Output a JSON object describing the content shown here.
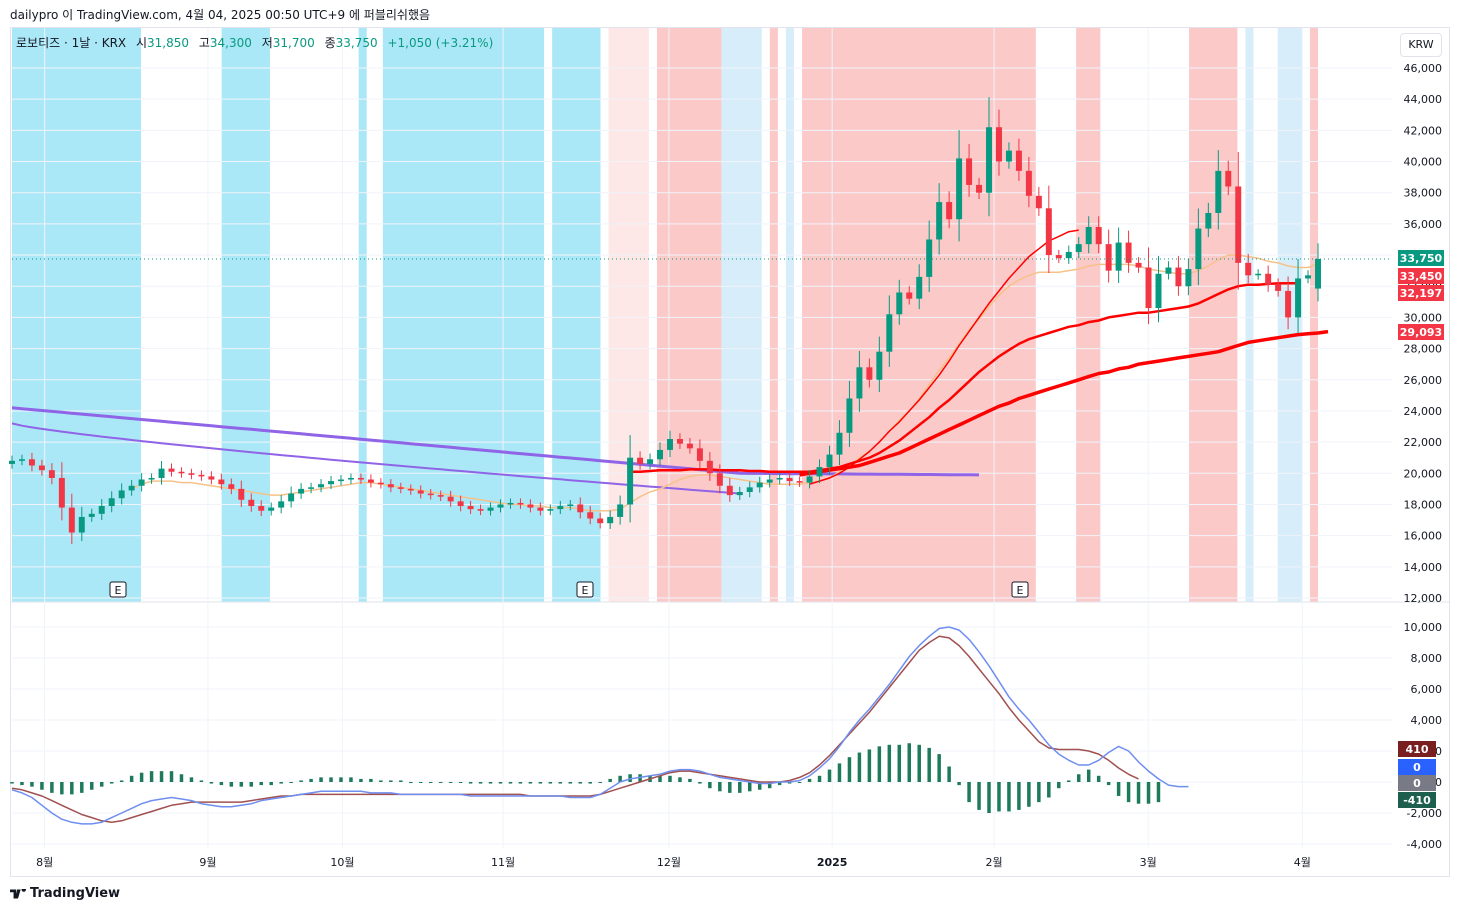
{
  "header": {
    "attribution": "dailypro 이 TradingView.com, 4월 04, 2025 00:50 UTC+9 에 퍼블리쉬했음"
  },
  "legend": {
    "symbol": "로보티즈 · 1날 · KRX",
    "open_label": "시",
    "open": "31,850",
    "high_label": "고",
    "high": "34,300",
    "low_label": "저",
    "low": "31,700",
    "close_label": "종",
    "close": "33,750",
    "change": "+1,050 (+3.21%)"
  },
  "currency_button": "KRW",
  "footer": {
    "brand": "TradingView"
  },
  "colors": {
    "up": "#089981",
    "down": "#f23645",
    "ma_thick": "#ff0000",
    "ma_orange": "#f5c28a",
    "bb_purple": "#8f64e6",
    "macd": "#6f8ef0",
    "signal": "#a0504f",
    "bg_blue": "#abe8f7",
    "bg_lightblue": "#d7edf9",
    "bg_red": "#fcc9c9",
    "bg_lightred": "#fde7e7"
  },
  "chart_data": {
    "type": "candlestick",
    "price_axis_ticks": [
      "46,000",
      "44,000",
      "42,000",
      "40,000",
      "38,000",
      "36,000",
      "34,000",
      "32,000",
      "30,000",
      "28,000",
      "26,000",
      "24,000",
      "22,000",
      "20,000",
      "18,000",
      "16,000",
      "14,000",
      "12,000"
    ],
    "price_labels": [
      {
        "text": "33,750",
        "color": "#089981"
      },
      {
        "text": "33,450",
        "color": "#f23645"
      },
      {
        "text": "32,197",
        "color": "#f23645"
      },
      {
        "text": "29,093",
        "color": "#f23645"
      }
    ],
    "earnings_markers": [
      "E",
      "E",
      "E"
    ],
    "time_axis": [
      "8월",
      "9월",
      "10월",
      "11월",
      "12월",
      "2025",
      "2월",
      "3월",
      "4월"
    ],
    "macd_axis_ticks": [
      "10,000",
      "8,000",
      "6,000",
      "4,000",
      "2,000",
      "0",
      "-2,000",
      "-4,000"
    ],
    "macd_labels": [
      {
        "text": "410",
        "color": "#7a1f1f"
      },
      {
        "text": "0",
        "color": "#2962ff"
      },
      {
        "text": "0",
        "color": "#787b86"
      },
      {
        "text": "-410",
        "color": "#1e5e4e"
      }
    ],
    "close_series": [
      20800,
      20900,
      20500,
      20200,
      19700,
      17800,
      16200,
      17200,
      17400,
      17900,
      18400,
      18900,
      19200,
      19600,
      19700,
      20300,
      20100,
      20000,
      19900,
      19800,
      19600,
      19300,
      19000,
      18300,
      17900,
      17600,
      17800,
      18200,
      18700,
      19000,
      19100,
      19300,
      19500,
      19600,
      19700,
      19600,
      19400,
      19300,
      19100,
      19000,
      18900,
      18700,
      18600,
      18500,
      18200,
      17900,
      17700,
      17600,
      17800,
      18000,
      18100,
      18000,
      17800,
      17600,
      17700,
      17900,
      18000,
      17500,
      17100,
      16800,
      17200,
      18000,
      21000,
      20600,
      20900,
      21500,
      22200,
      21900,
      21600,
      20800,
      20000,
      19200,
      18600,
      18800,
      19100,
      19400,
      19600,
      19700,
      19500,
      19400,
      19800,
      20400,
      21200,
      22600,
      24800,
      26800,
      26000,
      27800,
      30200,
      31600,
      31200,
      32600,
      35000,
      37400,
      36300,
      40200,
      38500,
      38000,
      42200,
      40000,
      40700,
      39400,
      37800,
      37000,
      34000,
      33800,
      34200,
      34700,
      35800,
      34700,
      33000,
      34800,
      33500,
      33200,
      30600,
      32800,
      33200,
      32000,
      33100,
      35700,
      36700,
      39400,
      38400,
      33500,
      32700,
      32800,
      32100,
      31700,
      30000,
      32500,
      32700,
      33750
    ],
    "open_series": [
      20600,
      20800,
      20900,
      20500,
      20200,
      19700,
      17800,
      16200,
      17200,
      17400,
      17900,
      18400,
      18900,
      19200,
      19600,
      19700,
      20300,
      20100,
      20000,
      19900,
      19800,
      19600,
      19300,
      19000,
      18300,
      17900,
      17600,
      17800,
      18200,
      18700,
      19000,
      19100,
      19300,
      19500,
      19600,
      19700,
      19600,
      19400,
      19300,
      19100,
      19000,
      18900,
      18700,
      18600,
      18500,
      18200,
      17900,
      17700,
      17600,
      17800,
      18000,
      18100,
      18000,
      17800,
      17600,
      17700,
      17900,
      18000,
      17500,
      17100,
      16800,
      17200,
      18000,
      21000,
      20600,
      20900,
      21500,
      22200,
      21900,
      21600,
      20800,
      20000,
      19200,
      18600,
      18800,
      19100,
      19400,
      19600,
      19700,
      19500,
      19400,
      19800,
      20400,
      21200,
      22600,
      24800,
      26800,
      26000,
      27800,
      30200,
      31600,
      31200,
      32600,
      35000,
      37400,
      36300,
      40200,
      38500,
      38000,
      42200,
      40000,
      40700,
      39400,
      37800,
      37000,
      34000,
      33800,
      34200,
      34700,
      35800,
      34700,
      33000,
      34800,
      33500,
      33200,
      30600,
      32800,
      33200,
      32000,
      33100,
      35700,
      36700,
      39400,
      38400,
      33500,
      32700,
      32800,
      32100,
      31700,
      30000,
      32500,
      31850
    ],
    "ma_short_orange": [
      null,
      null,
      null,
      null,
      null,
      null,
      null,
      null,
      null,
      null,
      null,
      null,
      19000,
      19300,
      19500,
      19500,
      19500,
      19400,
      19400,
      19300,
      19200,
      19100,
      19000,
      18900,
      18800,
      18700,
      18600,
      18600,
      18700,
      18800,
      18900,
      19000,
      19100,
      19200,
      19300,
      19400,
      19400,
      19300,
      19200,
      19100,
      19000,
      18900,
      18800,
      18700,
      18600,
      18500,
      18400,
      18300,
      18200,
      18100,
      18000,
      18000,
      17900,
      17900,
      17800,
      17800,
      17800,
      17700,
      17600,
      17600,
      17600,
      17700,
      18100,
      18500,
      18800,
      19000,
      19300,
      19600,
      19800,
      19900,
      19900,
      19800,
      19700,
      19600,
      19500,
      19400,
      19300,
      19300,
      19300,
      19300,
      19400,
      19500,
      19700,
      20100,
      20500,
      21000,
      21400,
      22000,
      22700,
      23400,
      24000,
      24800,
      25700,
      26600,
      27400,
      28300,
      29200,
      29900,
      30700,
      31400,
      32000,
      32400,
      32700,
      32900,
      32900,
      32900,
      33000,
      33100,
      33300,
      33400,
      33400,
      33400,
      33400,
      33300,
      33100,
      33000,
      32900,
      32800,
      32800,
      33000,
      33300,
      33700,
      34000,
      34000,
      33900,
      33800,
      33600,
      33500,
      33300,
      33200,
      33200,
      33450
    ],
    "ma_mid_red": [
      null,
      null,
      null,
      null,
      null,
      null,
      null,
      null,
      null,
      null,
      null,
      null,
      null,
      null,
      null,
      null,
      null,
      null,
      null,
      null,
      null,
      null,
      null,
      null,
      null,
      null,
      null,
      null,
      null,
      null,
      null,
      null,
      null,
      null,
      null,
      null,
      null,
      null,
      null,
      null,
      null,
      null,
      null,
      null,
      null,
      null,
      null,
      null,
      null,
      null,
      null,
      null,
      null,
      null,
      null,
      null,
      null,
      null,
      null,
      null,
      null,
      null,
      null,
      null,
      null,
      null,
      null,
      null,
      null,
      null,
      null,
      null,
      null,
      null,
      null,
      null,
      null,
      null,
      null,
      null,
      19300,
      19500,
      19700,
      20000,
      20400,
      20900,
      21400,
      22000,
      22700,
      23300,
      24000,
      24700,
      25500,
      26300,
      27200,
      28200,
      29100,
      30000,
      30900,
      31700,
      32500,
      33200,
      33900,
      34400,
      34900,
      35200,
      35500,
      35600,
      null,
      null,
      null,
      null,
      null,
      null,
      null,
      null,
      null,
      null,
      null,
      null,
      null,
      null,
      null,
      null,
      null,
      null,
      null,
      null,
      null,
      null,
      null,
      null,
      null,
      null
    ],
    "ma_long_red": [
      null,
      null,
      null,
      null,
      null,
      null,
      null,
      null,
      null,
      null,
      null,
      null,
      null,
      null,
      null,
      null,
      null,
      null,
      null,
      null,
      null,
      null,
      null,
      null,
      null,
      null,
      null,
      null,
      null,
      null,
      null,
      null,
      null,
      null,
      null,
      null,
      null,
      null,
      null,
      null,
      null,
      null,
      null,
      null,
      null,
      null,
      null,
      null,
      null,
      null,
      null,
      null,
      null,
      null,
      null,
      null,
      null,
      null,
      null,
      null,
      null,
      null,
      20100,
      20100,
      20150,
      20200,
      20200,
      20200,
      20250,
      20250,
      20250,
      20200,
      20200,
      20200,
      20150,
      20150,
      20100,
      20100,
      20100,
      20100,
      20100,
      20200,
      20300,
      20400,
      20600,
      20800,
      21000,
      21300,
      21700,
      22100,
      22600,
      23100,
      23600,
      24200,
      24700,
      25300,
      25900,
      26500,
      27000,
      27500,
      27900,
      28300,
      28600,
      28800,
      29000,
      29200,
      29400,
      29500,
      29700,
      29800,
      30000,
      30100,
      30200,
      30300,
      30300,
      30400,
      30500,
      30600,
      30700,
      30900,
      31200,
      31500,
      31800,
      32000,
      32100,
      32100,
      32150,
      32180,
      32190,
      32197
    ],
    "ma_longest_red": [
      null,
      null,
      null,
      null,
      null,
      null,
      null,
      null,
      null,
      null,
      null,
      null,
      null,
      null,
      null,
      null,
      null,
      null,
      null,
      null,
      null,
      null,
      null,
      null,
      null,
      null,
      null,
      null,
      null,
      null,
      null,
      null,
      null,
      null,
      null,
      null,
      null,
      null,
      null,
      null,
      null,
      null,
      null,
      null,
      null,
      null,
      null,
      null,
      null,
      null,
      null,
      null,
      null,
      null,
      null,
      null,
      null,
      null,
      null,
      null,
      null,
      null,
      null,
      null,
      null,
      null,
      null,
      null,
      null,
      null,
      null,
      null,
      null,
      null,
      null,
      null,
      null,
      null,
      null,
      19900,
      20000,
      20100,
      20200,
      20300,
      20400,
      20500,
      20700,
      20900,
      21100,
      21300,
      21600,
      21900,
      22200,
      22500,
      22800,
      23100,
      23400,
      23700,
      24000,
      24300,
      24500,
      24800,
      25000,
      25200,
      25400,
      25600,
      25800,
      26000,
      26200,
      26400,
      26500,
      26700,
      26800,
      27000,
      27100,
      27200,
      27300,
      27400,
      27500,
      27600,
      27700,
      27800,
      28000,
      28200,
      28400,
      28500,
      28600,
      28700,
      28800,
      28900,
      28950,
      29000,
      29093
    ],
    "macd_line": [
      -500,
      -700,
      -1000,
      -1500,
      -2000,
      -2400,
      -2600,
      -2700,
      -2700,
      -2600,
      -2300,
      -2000,
      -1700,
      -1400,
      -1200,
      -1100,
      -1000,
      -1100,
      -1200,
      -1400,
      -1500,
      -1600,
      -1600,
      -1500,
      -1400,
      -1200,
      -1100,
      -1000,
      -900,
      -800,
      -700,
      -600,
      -600,
      -600,
      -600,
      -600,
      -700,
      -700,
      -700,
      -800,
      -800,
      -800,
      -800,
      -800,
      -800,
      -800,
      -900,
      -900,
      -900,
      -900,
      -900,
      -900,
      -900,
      -900,
      -900,
      -900,
      -1000,
      -1000,
      -1000,
      -800,
      -400,
      0,
      200,
      300,
      400,
      500,
      700,
      800,
      800,
      700,
      500,
      300,
      200,
      100,
      0,
      -100,
      -100,
      0,
      0,
      100,
      400,
      900,
      1500,
      2300,
      3200,
      4000,
      4700,
      5500,
      6300,
      7200,
      8100,
      8800,
      9400,
      9900,
      10000,
      9800,
      9200,
      8400,
      7500,
      6500,
      5500,
      4700,
      4000,
      3200,
      2400,
      1800,
      1400,
      1100,
      1100,
      1400,
      1900,
      2300,
      2000,
      1300,
      700,
      200,
      -200,
      -300,
      -300
    ],
    "signal_line": [
      -400,
      -500,
      -700,
      -900,
      -1200,
      -1500,
      -1800,
      -2100,
      -2300,
      -2500,
      -2600,
      -2500,
      -2300,
      -2100,
      -1900,
      -1700,
      -1500,
      -1400,
      -1300,
      -1300,
      -1300,
      -1300,
      -1300,
      -1300,
      -1200,
      -1100,
      -1000,
      -900,
      -900,
      -800,
      -800,
      -800,
      -800,
      -800,
      -800,
      -800,
      -800,
      -800,
      -800,
      -800,
      -800,
      -800,
      -800,
      -800,
      -800,
      -800,
      -800,
      -800,
      -800,
      -800,
      -800,
      -800,
      -900,
      -900,
      -900,
      -900,
      -900,
      -900,
      -900,
      -800,
      -600,
      -400,
      -200,
      0,
      200,
      400,
      600,
      700,
      700,
      600,
      500,
      400,
      300,
      200,
      100,
      0,
      0,
      0,
      100,
      300,
      600,
      1100,
      1700,
      2400,
      3100,
      3800,
      4500,
      5300,
      6100,
      6900,
      7700,
      8500,
      9000,
      9400,
      9300,
      8800,
      8100,
      7300,
      6500,
      5700,
      4800,
      4000,
      3300,
      2600,
      2200,
      2100,
      2100,
      2100,
      2000,
      1800,
      1400,
      900,
      500,
      200
    ],
    "macd_histogram": [
      -100,
      -200,
      -300,
      -500,
      -700,
      -800,
      -800,
      -700,
      -500,
      -300,
      -100,
      100,
      400,
      600,
      700,
      700,
      700,
      500,
      300,
      100,
      -100,
      -200,
      -300,
      -300,
      -300,
      -200,
      -200,
      -100,
      0,
      100,
      200,
      300,
      300,
      300,
      300,
      200,
      200,
      100,
      100,
      100,
      0,
      0,
      0,
      0,
      0,
      0,
      -100,
      -100,
      -100,
      -100,
      -100,
      -100,
      -100,
      -100,
      -100,
      -100,
      -100,
      -100,
      -100,
      0,
      200,
      400,
      500,
      500,
      400,
      400,
      400,
      300,
      200,
      -100,
      -400,
      -600,
      -700,
      -700,
      -600,
      -500,
      -400,
      -200,
      -100,
      0,
      200,
      400,
      800,
      1200,
      1600,
      1900,
      2100,
      2300,
      2400,
      2400,
      2500,
      2400,
      2200,
      1800,
      1000,
      -200,
      -1300,
      -1800,
      -2000,
      -1900,
      -1900,
      -1800,
      -1600,
      -1300,
      -1000,
      -400,
      100,
      500,
      800,
      400,
      -200,
      -900,
      -1300,
      -1400,
      -1400,
      -1300
    ]
  }
}
